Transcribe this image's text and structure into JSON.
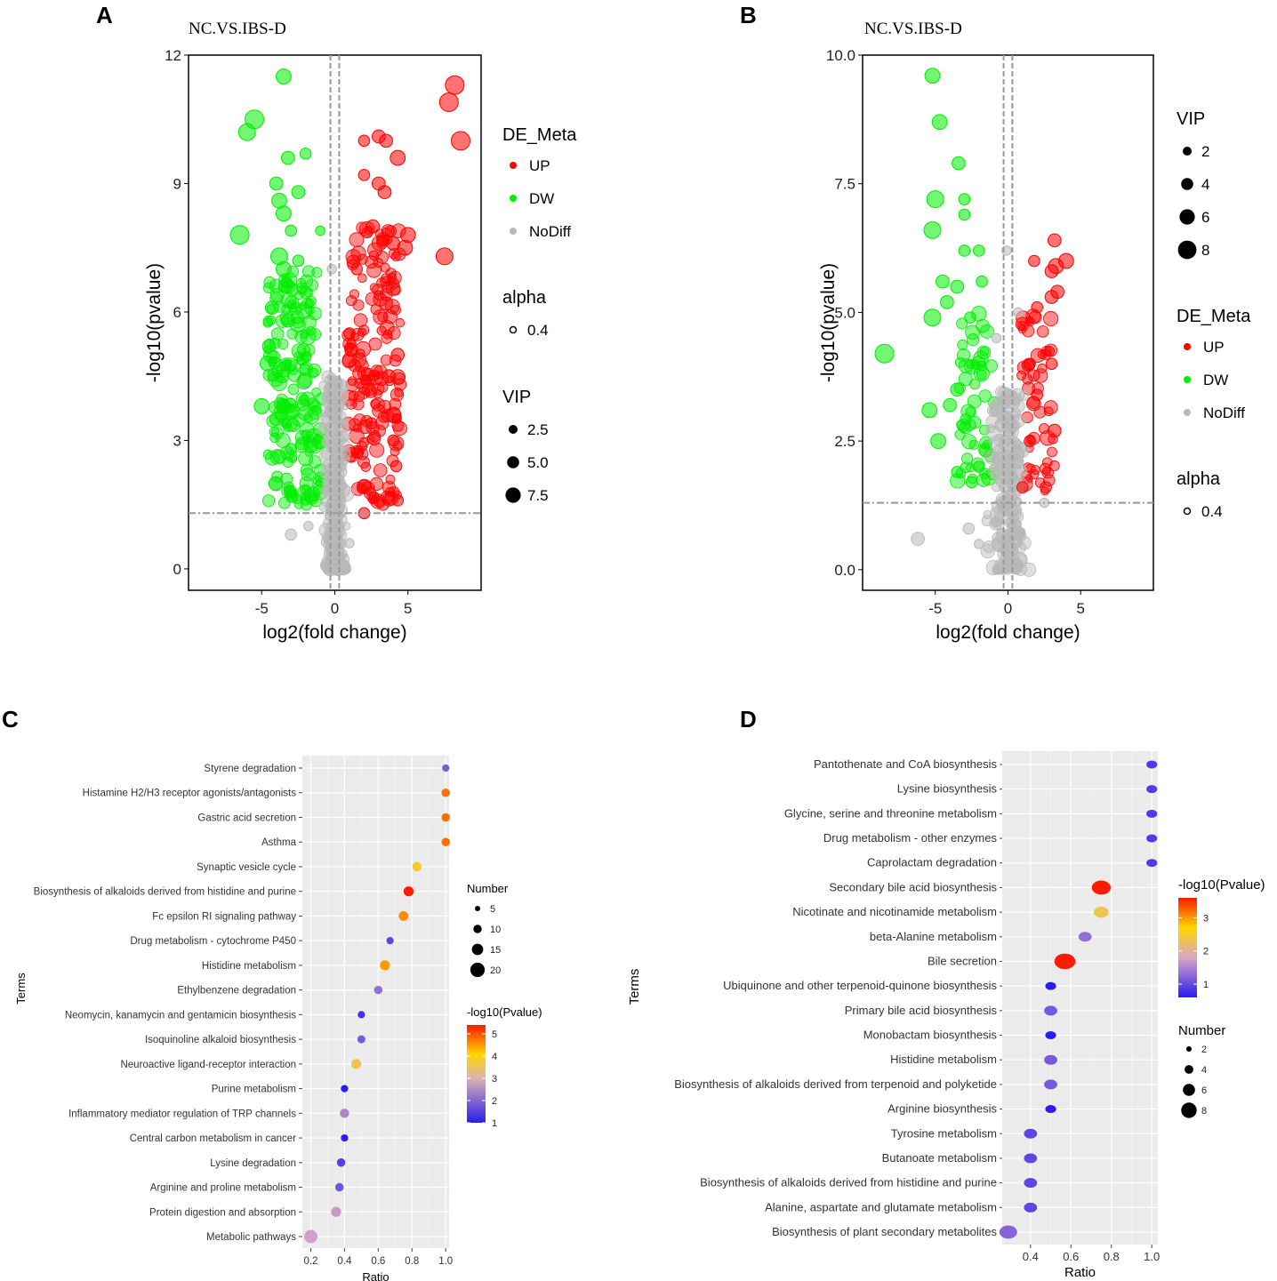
{
  "figure": {
    "panel_labels": [
      "A",
      "B",
      "C",
      "D"
    ]
  },
  "chart_data": [
    {
      "id": "A",
      "type": "scatter",
      "title": "NC.VS.IBS-D",
      "xlabel": "log2(fold change)",
      "ylabel": "-log10(pvalue)",
      "xlim": [
        -10,
        10
      ],
      "ylim": [
        -0.5,
        12
      ],
      "xticks": [
        -5,
        0,
        5
      ],
      "xtick_labels": [
        "-5",
        "0",
        "5"
      ],
      "yticks": [
        0,
        3,
        6,
        9,
        12
      ],
      "ytick_labels": [
        "0",
        "3",
        "6",
        "9",
        "12"
      ],
      "thresholds": {
        "log2fc": [
          -0.3,
          0.3
        ],
        "neg_log10_p": 1.3
      },
      "colors": {
        "UP": "#ff0000",
        "DW": "#00ee00",
        "NoDiff": "#b8b8b8",
        "threshold": "#999999"
      },
      "legend": {
        "de_title": "DE_Meta",
        "de_items": [
          "UP",
          "DW",
          "NoDiff"
        ],
        "alpha_title": "alpha",
        "alpha_items": [
          "0.4"
        ],
        "vip_title": "VIP",
        "vip_items": [
          "2.5",
          "5.0",
          "7.5"
        ],
        "order": [
          "de",
          "alpha",
          "vip"
        ]
      },
      "points": [
        [
          -3.5,
          11.5,
          "DW",
          4
        ],
        [
          -5.5,
          10.5,
          "DW",
          5
        ],
        [
          -6.0,
          10.2,
          "DW",
          4.5
        ],
        [
          -3.2,
          9.6,
          "DW",
          3.5
        ],
        [
          -2.0,
          9.7,
          "DW",
          3
        ],
        [
          -4.0,
          9.0,
          "DW",
          3.5
        ],
        [
          -2.5,
          8.8,
          "DW",
          3.5
        ],
        [
          -3.8,
          8.6,
          "DW",
          4
        ],
        [
          -3.5,
          8.3,
          "DW",
          4
        ],
        [
          -6.5,
          7.8,
          "DW",
          5
        ],
        [
          -3.0,
          7.9,
          "DW",
          3
        ],
        [
          -1.0,
          7.9,
          "DW",
          2.5
        ],
        [
          -3.8,
          7.3,
          "DW",
          4.5
        ],
        [
          -3.5,
          7.0,
          "DW",
          4
        ],
        [
          -2.5,
          7.2,
          "DW",
          3
        ],
        [
          -4.3,
          6.1,
          "DW",
          3.5
        ],
        [
          -3.2,
          5.8,
          "DW",
          3.5
        ],
        [
          -4.5,
          5.2,
          "DW",
          3.5
        ],
        [
          -4.6,
          4.8,
          "DW",
          4
        ],
        [
          -3.6,
          4.5,
          "DW",
          3.5
        ],
        [
          -5.0,
          3.8,
          "DW",
          4
        ],
        [
          -4.0,
          3.5,
          "DW",
          3.5
        ],
        [
          -3.0,
          2.8,
          "DW",
          3
        ],
        [
          -3.0,
          1.8,
          "DW",
          3
        ],
        [
          -2.0,
          1.6,
          "DW",
          2.5
        ],
        [
          2.0,
          10.0,
          "UP",
          3
        ],
        [
          3.0,
          10.1,
          "UP",
          3.5
        ],
        [
          3.5,
          10.0,
          "UP",
          3.5
        ],
        [
          4.3,
          9.6,
          "UP",
          4
        ],
        [
          2.0,
          9.2,
          "UP",
          3
        ],
        [
          3.0,
          9.0,
          "UP",
          3.5
        ],
        [
          3.4,
          8.8,
          "UP",
          3.5
        ],
        [
          7.8,
          10.9,
          "UP",
          5
        ],
        [
          8.2,
          11.3,
          "UP",
          5
        ],
        [
          8.6,
          10.0,
          "UP",
          5
        ],
        [
          7.5,
          7.3,
          "UP",
          4.5
        ],
        [
          5.0,
          7.8,
          "UP",
          4
        ],
        [
          4.8,
          7.5,
          "UP",
          4
        ],
        [
          4.0,
          7.6,
          "UP",
          3.5
        ],
        [
          3.5,
          6.2,
          "UP",
          3.5
        ],
        [
          4.3,
          5.0,
          "UP",
          3.5
        ],
        [
          3.7,
          4.5,
          "UP",
          3.5
        ],
        [
          2.5,
          3.4,
          "UP",
          3
        ],
        [
          4.0,
          3.0,
          "UP",
          3
        ],
        [
          4.2,
          2.4,
          "UP",
          3
        ],
        [
          4.3,
          1.6,
          "UP",
          3
        ],
        [
          2.0,
          1.3,
          "UP",
          3
        ],
        [
          1.0,
          5.5,
          "UP",
          3
        ],
        [
          1.5,
          7.0,
          "UP",
          3
        ],
        [
          2.6,
          8.0,
          "UP",
          3.5
        ],
        [
          -0.5,
          4.0,
          "NoDiff",
          2.5
        ],
        [
          -0.2,
          7.0,
          "NoDiff",
          2.5
        ],
        [
          -1.8,
          1.0,
          "NoDiff",
          2.5
        ],
        [
          1.0,
          0.6,
          "NoDiff",
          2.5
        ],
        [
          -3.0,
          0.8,
          "NoDiff",
          3
        ]
      ],
      "cloud": [
        {
          "type": "DW",
          "x": [
            -4.6,
            -0.9
          ],
          "y": [
            1.5,
            7.0
          ],
          "n": 180
        },
        {
          "type": "UP",
          "x": [
            0.9,
            4.5
          ],
          "y": [
            1.5,
            8.0
          ],
          "n": 180
        },
        {
          "type": "NoDiff",
          "x": [
            -1.0,
            1.0
          ],
          "y": [
            0.0,
            4.5
          ],
          "n": 260
        }
      ]
    },
    {
      "id": "B",
      "type": "scatter",
      "title": "NC.VS.IBS-D",
      "xlabel": "log2(fold change)",
      "ylabel": "-log10(pvalue)",
      "xlim": [
        -10,
        10
      ],
      "ylim": [
        -0.4,
        10
      ],
      "xticks": [
        -5,
        0,
        5
      ],
      "xtick_labels": [
        "-5",
        "0",
        "5"
      ],
      "yticks": [
        0,
        2.5,
        5,
        7.5,
        10
      ],
      "ytick_labels": [
        "0.0",
        "2.5",
        "5.0",
        "7.5",
        "10.0"
      ],
      "thresholds": {
        "log2fc": [
          -0.3,
          0.3
        ],
        "neg_log10_p": 1.3
      },
      "colors": {
        "UP": "#ff0000",
        "DW": "#00ee00",
        "NoDiff": "#b8b8b8",
        "threshold": "#999999"
      },
      "legend": {
        "de_title": "DE_Meta",
        "de_items": [
          "UP",
          "DW",
          "NoDiff"
        ],
        "alpha_title": "alpha",
        "alpha_items": [
          "0.4"
        ],
        "vip_title": "VIP",
        "vip_items": [
          "2",
          "4",
          "6",
          "8"
        ],
        "order": [
          "vip",
          "de",
          "alpha"
        ]
      },
      "points": [
        [
          -5.2,
          9.6,
          "DW",
          4
        ],
        [
          -4.7,
          8.7,
          "DW",
          4
        ],
        [
          -3.4,
          7.9,
          "DW",
          3.5
        ],
        [
          -5.0,
          7.2,
          "DW",
          4.5
        ],
        [
          -3.0,
          7.2,
          "DW",
          3
        ],
        [
          -3.0,
          6.9,
          "DW",
          3
        ],
        [
          -5.2,
          6.6,
          "DW",
          4.5
        ],
        [
          -3.0,
          6.2,
          "DW",
          3
        ],
        [
          -2.0,
          6.2,
          "DW",
          3
        ],
        [
          -4.5,
          5.6,
          "DW",
          3.5
        ],
        [
          -3.5,
          5.5,
          "DW",
          3.5
        ],
        [
          -1.8,
          5.6,
          "DW",
          3
        ],
        [
          -4.2,
          5.2,
          "DW",
          3.5
        ],
        [
          -5.2,
          4.9,
          "DW",
          4.5
        ],
        [
          -2.6,
          4.9,
          "DW",
          3
        ],
        [
          -8.5,
          4.2,
          "DW",
          5
        ],
        [
          -3.5,
          3.5,
          "DW",
          3.5
        ],
        [
          -4.0,
          3.2,
          "DW",
          3.5
        ],
        [
          -5.4,
          3.1,
          "DW",
          4
        ],
        [
          -4.8,
          2.5,
          "DW",
          4
        ],
        [
          -3.5,
          1.9,
          "DW",
          3
        ],
        [
          -2.5,
          1.7,
          "DW",
          3
        ],
        [
          -2.0,
          2.0,
          "DW",
          3
        ],
        [
          3.2,
          6.4,
          "UP",
          3.5
        ],
        [
          3.3,
          5.9,
          "UP",
          4
        ],
        [
          4.0,
          6.0,
          "UP",
          4
        ],
        [
          3.0,
          5.8,
          "UP",
          3.5
        ],
        [
          1.8,
          6.0,
          "UP",
          3
        ],
        [
          3.4,
          5.4,
          "UP",
          3.5
        ],
        [
          3.0,
          5.3,
          "UP",
          3.5
        ],
        [
          2.0,
          5.1,
          "UP",
          3
        ],
        [
          1.5,
          4.0,
          "UP",
          3
        ],
        [
          3.0,
          4.0,
          "UP",
          3
        ],
        [
          3.2,
          2.7,
          "UP",
          3.5
        ],
        [
          1.5,
          2.5,
          "UP",
          3
        ],
        [
          2.6,
          1.6,
          "UP",
          3
        ],
        [
          1.0,
          1.6,
          "UP",
          3
        ],
        [
          2.0,
          3.4,
          "UP",
          3
        ],
        [
          -6.2,
          0.6,
          "NoDiff",
          3.5
        ],
        [
          -2.7,
          0.8,
          "NoDiff",
          3
        ],
        [
          -2.0,
          0.5,
          "NoDiff",
          2.5
        ],
        [
          0.5,
          2.8,
          "NoDiff",
          2.5
        ],
        [
          -0.8,
          4.5,
          "NoDiff",
          2.5
        ],
        [
          0.7,
          5.0,
          "NoDiff",
          2.5
        ],
        [
          -0.1,
          6.2,
          "NoDiff",
          2.5
        ],
        [
          2.5,
          1.3,
          "NoDiff",
          2.5
        ]
      ],
      "cloud": [
        {
          "type": "DW",
          "x": [
            -3.5,
            -0.9
          ],
          "y": [
            1.5,
            5.0
          ],
          "n": 55
        },
        {
          "type": "UP",
          "x": [
            0.9,
            3.2
          ],
          "y": [
            1.5,
            5.0
          ],
          "n": 55
        },
        {
          "type": "NoDiff",
          "x": [
            -1.8,
            1.8
          ],
          "y": [
            0.0,
            3.5
          ],
          "n": 200
        }
      ]
    },
    {
      "id": "C",
      "type": "scatter",
      "subtype": "enrichment-dot",
      "xlabel": "Ratio",
      "ylabel": "Terms",
      "xlim": [
        0.15,
        1.02
      ],
      "xticks": [
        0.2,
        0.4,
        0.6,
        0.8,
        1.0
      ],
      "xtick_labels": [
        "0.2",
        "0.4",
        "0.6",
        "0.8",
        "1.0"
      ],
      "terms": [
        "Styrene degradation",
        "Histamine H2/H3 receptor agonists/antagonists",
        "Gastric acid secretion",
        "Asthma",
        "Synaptic vesicle cycle",
        "Biosynthesis of alkaloids derived from histidine and purine",
        "Fc epsilon RI signaling pathway",
        "Drug metabolism - cytochrome P450",
        "Histidine metabolism",
        "Ethylbenzene degradation",
        "Neomycin, kanamycin and gentamicin biosynthesis",
        "Isoquinoline alkaloid biosynthesis",
        "Neuroactive ligand-receptor interaction",
        "Purine metabolism",
        "Inflammatory mediator regulation of TRP channels",
        "Central carbon metabolism in cancer",
        "Lysine degradation",
        "Arginine and proline metabolism",
        "Protein digestion and absorption",
        "Metabolic pathways"
      ],
      "ratio": [
        1.0,
        1.0,
        1.0,
        1.0,
        0.83,
        0.78,
        0.75,
        0.67,
        0.64,
        0.6,
        0.5,
        0.5,
        0.47,
        0.4,
        0.4,
        0.4,
        0.38,
        0.37,
        0.35,
        0.2
      ],
      "number": [
        1,
        3,
        3,
        3,
        5,
        7,
        6,
        1,
        7,
        3,
        1,
        2,
        7,
        1,
        5,
        1,
        3,
        3,
        7,
        22
      ],
      "neg_log10_p": [
        1.9,
        4.8,
        4.8,
        4.8,
        3.8,
        5.4,
        4.6,
        1.6,
        4.5,
        2.2,
        1.3,
        1.9,
        3.6,
        1.0,
        2.5,
        1.0,
        1.5,
        1.8,
        2.8,
        2.9
      ],
      "legend": {
        "size_title": "Number",
        "size_values": [
          5,
          10,
          15,
          20
        ],
        "size_labels": [
          "5",
          "10",
          "15",
          "20"
        ],
        "color_title": "-log10(Pvalue)",
        "color_range": [
          1,
          5.4
        ],
        "color_ticks": [
          1,
          2,
          3,
          4,
          5
        ],
        "color_tick_labels": [
          "1",
          "2",
          "3",
          "4",
          "5"
        ],
        "order": [
          "size",
          "color"
        ]
      },
      "colors": {
        "low": "#2a1cf2",
        "mid": "#ffd600",
        "high": "#ff1a00"
      }
    },
    {
      "id": "D",
      "type": "scatter",
      "subtype": "enrichment-dot",
      "xlabel": "Ratio",
      "ylabel": "Terms",
      "xlim": [
        0.26,
        1.03
      ],
      "xticks": [
        0.4,
        0.6,
        0.8,
        1.0
      ],
      "xtick_labels": [
        "0.4",
        "0.6",
        "0.8",
        "1.0"
      ],
      "terms": [
        "Pantothenate and CoA biosynthesis",
        "Lysine biosynthesis",
        "Glycine, serine and threonine metabolism",
        "Drug metabolism - other enzymes",
        "Caprolactam degradation",
        "Secondary bile acid biosynthesis",
        "Nicotinate and nicotinamide metabolism",
        "beta-Alanine metabolism",
        "Bile secretion",
        "Ubiquinone and other terpenoid-quinone biosynthesis",
        "Primary bile acid biosynthesis",
        "Monobactam biosynthesis",
        "Histidine metabolism",
        "Biosynthesis of alkaloids derived from terpenoid and polyketide",
        "Arginine biosynthesis",
        "Tyrosine metabolism",
        "Butanoate metabolism",
        "Biosynthesis of alkaloids derived from histidine and purine",
        "Alanine, aspartate and glutamate metabolism",
        "Biosynthesis of plant secondary metabolites"
      ],
      "ratio": [
        1.0,
        1.0,
        1.0,
        1.0,
        1.0,
        0.75,
        0.75,
        0.67,
        0.57,
        0.5,
        0.5,
        0.5,
        0.5,
        0.5,
        0.5,
        0.4,
        0.4,
        0.4,
        0.4,
        0.29
      ],
      "number": [
        1,
        1,
        1,
        1,
        1,
        6,
        3,
        2,
        8,
        1,
        2,
        1,
        2,
        2,
        1,
        2,
        2,
        2,
        2,
        5
      ],
      "neg_log10_p": [
        0.9,
        0.9,
        0.9,
        0.9,
        0.9,
        3.6,
        2.4,
        1.4,
        3.6,
        0.6,
        1.2,
        0.6,
        1.2,
        1.2,
        0.6,
        1.0,
        1.0,
        1.0,
        1.0,
        1.3
      ],
      "legend": {
        "color_title": "-log10(Pvalue)",
        "color_range": [
          0.6,
          3.6
        ],
        "color_ticks": [
          1,
          2,
          3
        ],
        "color_tick_labels": [
          "1",
          "2",
          "3"
        ],
        "size_title": "Number",
        "size_values": [
          2,
          4,
          6,
          8
        ],
        "size_labels": [
          "2",
          "4",
          "6",
          "8"
        ],
        "order": [
          "color",
          "size"
        ]
      },
      "colors": {
        "low": "#2a1cf2",
        "mid": "#ffd600",
        "high": "#ff1a00"
      }
    }
  ]
}
